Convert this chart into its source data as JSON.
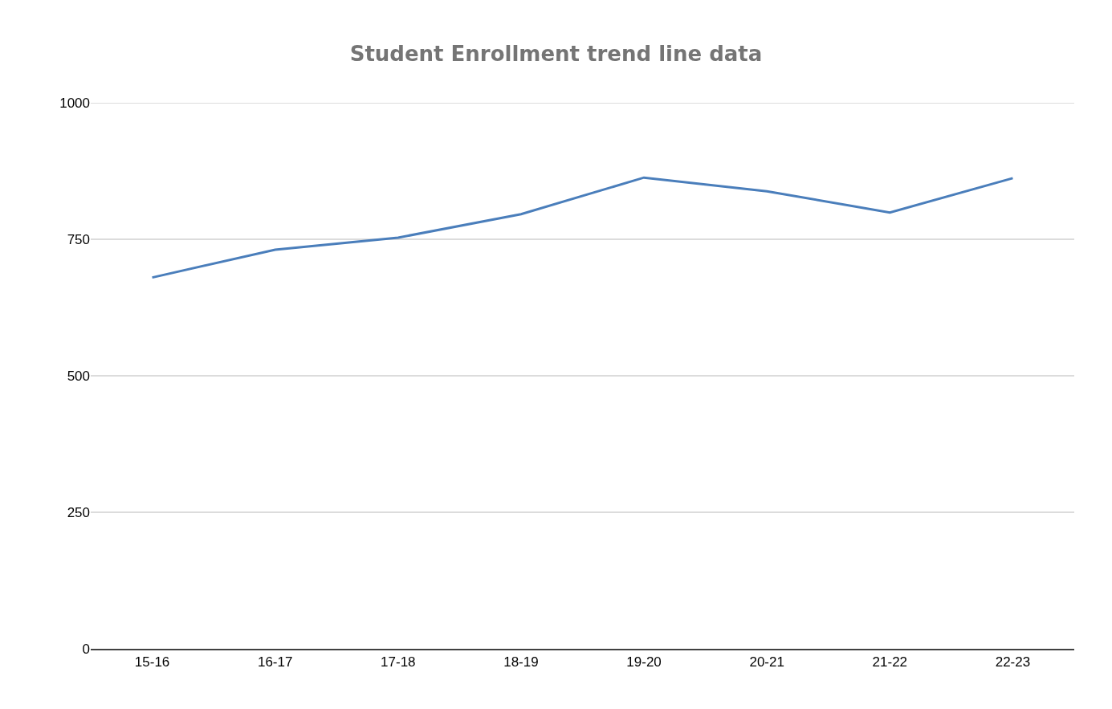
{
  "chart_data": {
    "type": "line",
    "title": "Student Enrollment trend line data",
    "categories": [
      "15-16",
      "16-17",
      "17-18",
      "18-19",
      "19-20",
      "20-21",
      "21-22",
      "22-23"
    ],
    "series": [
      {
        "color": "#4a7ebb",
        "values": [
          680,
          731,
          753,
          796,
          863,
          838,
          799,
          862
        ]
      }
    ],
    "ylim": [
      0,
      1000
    ],
    "yticks": [
      0,
      250,
      500,
      750,
      1000
    ],
    "grid": "y",
    "marker": "none",
    "line_style": "solid"
  }
}
